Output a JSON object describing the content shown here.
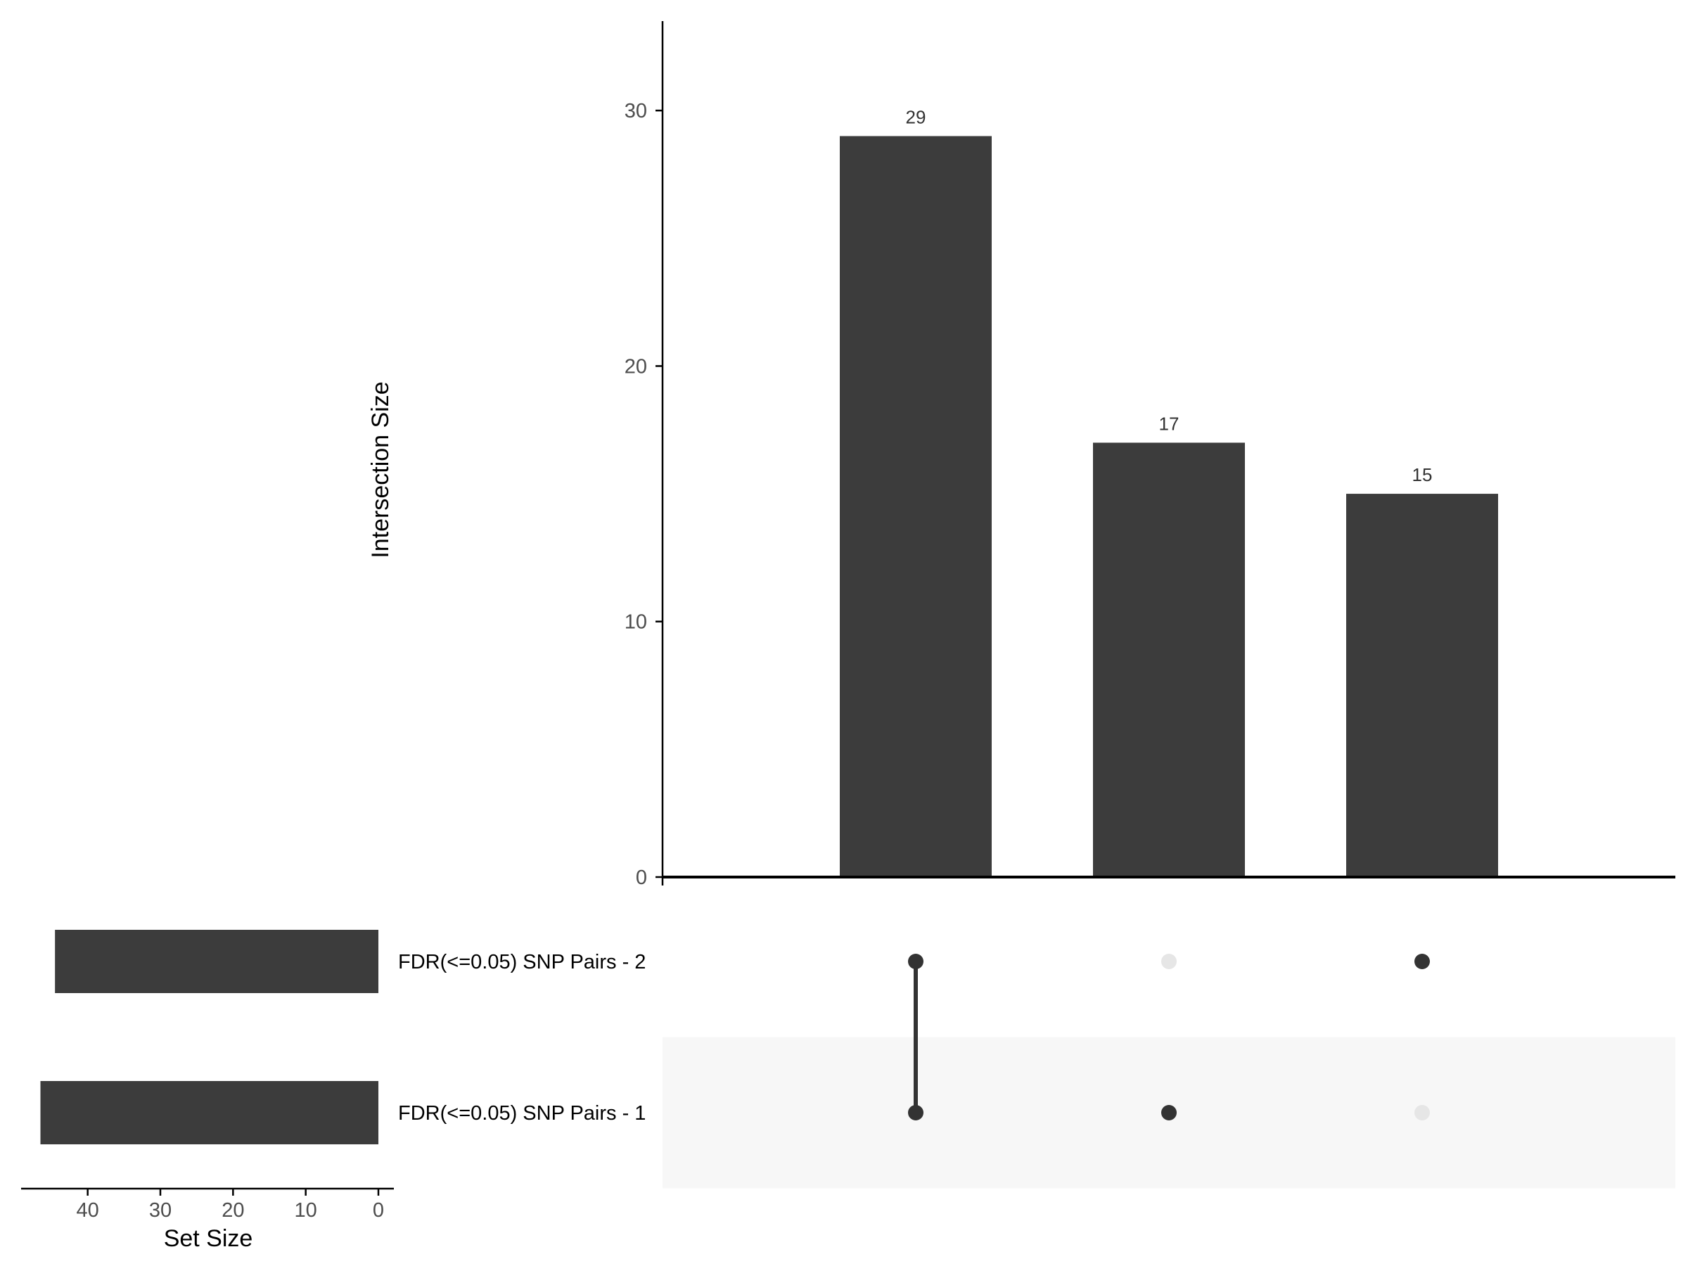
{
  "chart_data": {
    "type": "bar",
    "subtype": "upset",
    "title": "",
    "intersection_size": {
      "ylabel": "Intersection Size",
      "ylim": [
        0,
        33.5
      ],
      "yticks": [
        0,
        10,
        20,
        30
      ],
      "values": [
        29,
        17,
        15
      ],
      "value_labels": [
        "29",
        "17",
        "15"
      ],
      "bar_color": "#3c3c3c"
    },
    "sets": [
      {
        "name": "FDR(<=0.05) SNP Pairs - 2",
        "size": 44.5
      },
      {
        "name": "FDR(<=0.05) SNP Pairs - 1",
        "size": 46.5
      }
    ],
    "set_size": {
      "xlabel": "Set Size",
      "xlim": [
        0,
        48
      ],
      "xticks": [
        40,
        30,
        20,
        10,
        0
      ]
    },
    "intersections": [
      {
        "members": [
          true,
          true
        ]
      },
      {
        "members": [
          false,
          true
        ]
      },
      {
        "members": [
          true,
          false
        ]
      }
    ],
    "colors": {
      "bar": "#3c3c3c",
      "dot_active": "#333333",
      "dot_inactive": "#e6e6e6",
      "stripe": "#f7f7f7"
    },
    "grid": false,
    "legend": "none"
  }
}
